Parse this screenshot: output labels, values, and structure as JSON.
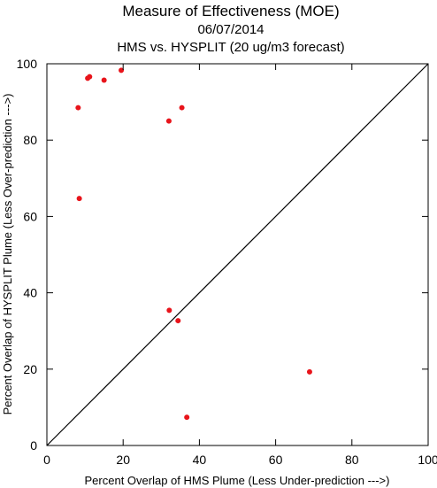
{
  "chart_data": {
    "type": "scatter",
    "title": "Measure of Effectiveness (MOE)",
    "subtitle_lines": [
      "06/07/2014",
      "HMS vs. HYSPLIT  (20 ug/m3 forecast)"
    ],
    "xlabel": "Percent Overlap of HMS Plume (Less Under-prediction --->)",
    "ylabel": "Percent Overlap of HYSPLIT Plume (Less Over-prediction --->)",
    "xlim": [
      0,
      100
    ],
    "ylim": [
      0,
      100
    ],
    "xticks": [
      0,
      20,
      40,
      60,
      80,
      100
    ],
    "yticks": [
      0,
      20,
      40,
      60,
      80,
      100
    ],
    "grid": false,
    "reference_line": {
      "from": [
        0,
        0
      ],
      "to": [
        100,
        100
      ],
      "color": "#000000"
    },
    "point_color": "#e8141b",
    "points": [
      {
        "x": 10.7,
        "y": 96.2
      },
      {
        "x": 11.2,
        "y": 96.6
      },
      {
        "x": 15.0,
        "y": 95.7
      },
      {
        "x": 19.5,
        "y": 98.3
      },
      {
        "x": 8.2,
        "y": 88.5
      },
      {
        "x": 35.4,
        "y": 88.5
      },
      {
        "x": 32.0,
        "y": 85.0
      },
      {
        "x": 8.5,
        "y": 64.7
      },
      {
        "x": 32.1,
        "y": 35.4
      },
      {
        "x": 34.4,
        "y": 32.7
      },
      {
        "x": 68.9,
        "y": 19.3
      },
      {
        "x": 36.7,
        "y": 7.4
      }
    ]
  }
}
